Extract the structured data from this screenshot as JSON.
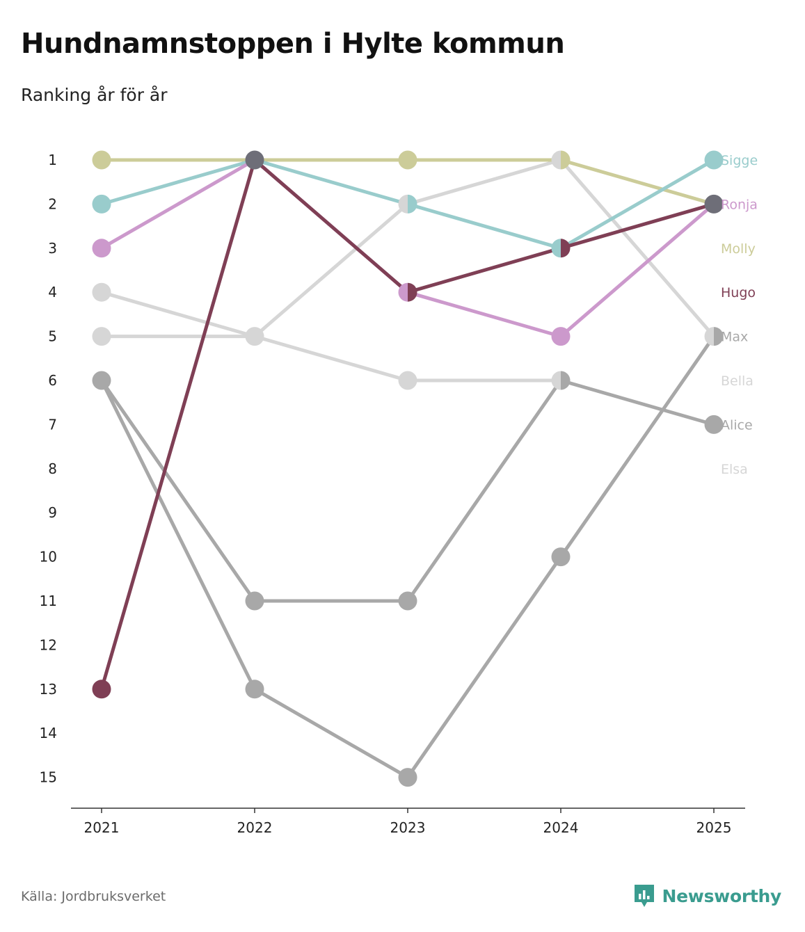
{
  "header": {
    "title": "Hundnamnstoppen i Hylte kommun",
    "subtitle": "Ranking år för år"
  },
  "footer": {
    "source": "Källa: Jordbruksverket",
    "brand": "Newsworthy"
  },
  "chart_data": {
    "type": "line",
    "title": "Hundnamnstoppen i Hylte kommun",
    "subtitle": "Ranking år för år",
    "x": [
      "2021",
      "2022",
      "2023",
      "2024",
      "2025"
    ],
    "y_ticks": [
      "1",
      "2",
      "3",
      "4",
      "5",
      "6",
      "7",
      "8",
      "9",
      "10",
      "11",
      "12",
      "13",
      "14",
      "15"
    ],
    "ylim": [
      1,
      15
    ],
    "y_reversed": true,
    "grid": false,
    "series": [
      {
        "name": "Elsa",
        "color": "#d6d6d6",
        "values": [
          4,
          5,
          6,
          6,
          null
        ]
      },
      {
        "name": "Bella",
        "color": "#d6d6d6",
        "values": [
          5,
          5,
          2,
          1,
          5
        ]
      },
      {
        "name": "Alice",
        "color": "#a8a8a8",
        "values": [
          6,
          11,
          11,
          6,
          7
        ]
      },
      {
        "name": "Max",
        "color": "#a8a8a8",
        "values": [
          6,
          13,
          15,
          10,
          5
        ]
      },
      {
        "name": "Molly",
        "color": "#cccc99",
        "values": [
          1,
          1,
          1,
          1,
          2
        ]
      },
      {
        "name": "Sigge",
        "color": "#99cccc",
        "values": [
          2,
          1,
          2,
          3,
          1
        ]
      },
      {
        "name": "Ronja",
        "color": "#cc99cc",
        "values": [
          3,
          1,
          4,
          5,
          2
        ]
      },
      {
        "name": "Hugo",
        "color": "#7f3f55",
        "values": [
          13,
          1,
          4,
          3,
          2
        ]
      }
    ],
    "end_labels": [
      {
        "name": "Sigge",
        "rank": 1,
        "color": "#99cccc"
      },
      {
        "name": "Ronja",
        "rank": 2,
        "color": "#cc99cc"
      },
      {
        "name": "Molly",
        "rank": 3,
        "color": "#cccc99"
      },
      {
        "name": "Hugo",
        "rank": 4,
        "color": "#7f3f55"
      },
      {
        "name": "Max",
        "rank": 5,
        "color": "#a8a8a8"
      },
      {
        "name": "Bella",
        "rank": 6,
        "color": "#d6d6d6"
      },
      {
        "name": "Alice",
        "rank": 7,
        "color": "#a8a8a8"
      },
      {
        "name": "Elsa",
        "rank": 8,
        "color": "#d6d6d6"
      }
    ],
    "shared_marker_color": "#6e6e78"
  }
}
